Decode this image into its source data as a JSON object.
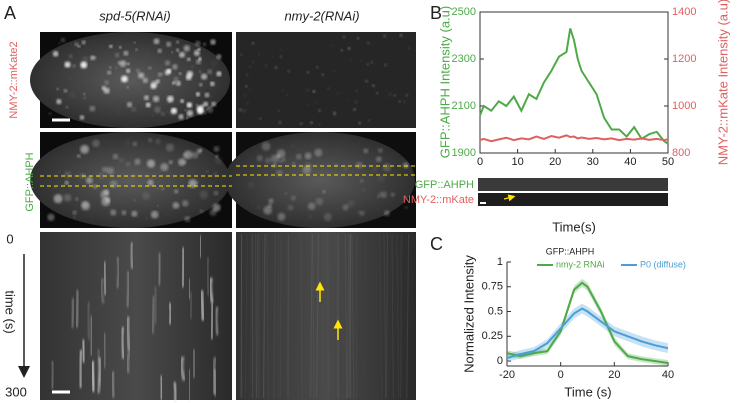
{
  "figure": {
    "labels": [
      "A",
      "B",
      "C"
    ],
    "panel_a": {
      "columns": [
        "spd-5(RNAi)",
        "nmy-2(RNAi)"
      ],
      "rows": [
        "NMY-2::mKate2",
        "GFP::AHPH"
      ],
      "time_start": "0",
      "time_label": "time (s)",
      "time_end": "300"
    },
    "kymo_labels": [
      "GFP::AHPH",
      "NMY-2::mKate"
    ]
  },
  "chart_data": [
    {
      "type": "line",
      "xlabel": "Time(s)",
      "ylabel": "GFP::AHPH Intensity (a.u)",
      "y2label": "NMY-2::mKate Intensity (a.u)",
      "x": [
        0,
        1,
        3,
        5,
        7,
        9,
        11,
        13,
        15,
        17,
        19,
        21,
        23,
        24,
        25,
        26,
        27,
        29,
        31,
        33,
        35,
        37,
        39,
        41,
        43,
        45,
        47,
        49,
        50
      ],
      "series": [
        {
          "name": "GFP::AHPH",
          "color": "#4daa47",
          "values": [
            2060,
            2100,
            2080,
            2120,
            2100,
            2140,
            2080,
            2150,
            2130,
            2200,
            2250,
            2310,
            2330,
            2430,
            2380,
            2300,
            2250,
            2200,
            2150,
            2050,
            2000,
            2000,
            1970,
            2010,
            1960,
            1980,
            1990,
            1950,
            1940
          ]
        },
        {
          "name": "NMY-2::mKate",
          "color": "#e06060",
          "axis": "y2",
          "values": [
            855,
            860,
            850,
            858,
            865,
            855,
            862,
            858,
            870,
            860,
            872,
            865,
            875,
            868,
            870,
            862,
            866,
            860,
            864,
            858,
            862,
            855,
            860,
            857,
            862,
            856,
            860,
            855,
            858
          ]
        }
      ],
      "xlim": [
        0,
        50
      ],
      "xticks": [
        0,
        10,
        20,
        30,
        40,
        50
      ],
      "ylim": [
        1900,
        2500
      ],
      "yticks": [
        1900,
        2100,
        2300,
        2500
      ],
      "y2lim": [
        800,
        1400
      ],
      "y2ticks": [
        800,
        1000,
        1200,
        1400
      ]
    },
    {
      "type": "line",
      "xlabel": "Time (s)",
      "ylabel": "Normalized Intensity",
      "legend_title": "GFP::AHPH",
      "x": [
        -20,
        -15,
        -10,
        -5,
        0,
        5,
        8,
        10,
        15,
        20,
        25,
        30,
        35,
        40
      ],
      "series": [
        {
          "name": "nmy-2 RNAi",
          "color": "#4daa47",
          "values": [
            0.08,
            0.05,
            0.08,
            0.1,
            0.3,
            0.72,
            0.79,
            0.75,
            0.5,
            0.2,
            0.05,
            0.02,
            0,
            -0.02
          ],
          "errors": [
            0.03,
            0.03,
            0.03,
            0.03,
            0.04,
            0.04,
            0.04,
            0.04,
            0.04,
            0.04,
            0.03,
            0.03,
            0.03,
            0.03
          ]
        },
        {
          "name": "P0 (diffuse)",
          "color": "#4a9fd8",
          "values": [
            0.03,
            0.07,
            0.1,
            0.18,
            0.33,
            0.48,
            0.53,
            0.5,
            0.4,
            0.3,
            0.25,
            0.2,
            0.16,
            0.13
          ],
          "errors": [
            0.04,
            0.04,
            0.04,
            0.04,
            0.05,
            0.05,
            0.05,
            0.05,
            0.05,
            0.05,
            0.05,
            0.05,
            0.05,
            0.05
          ]
        }
      ],
      "xlim": [
        -20,
        40
      ],
      "xticks": [
        -20,
        0,
        20,
        40
      ],
      "ylim": [
        -0.05,
        1
      ],
      "yticks": [
        0,
        0.25,
        0.5,
        0.75,
        1
      ]
    }
  ]
}
